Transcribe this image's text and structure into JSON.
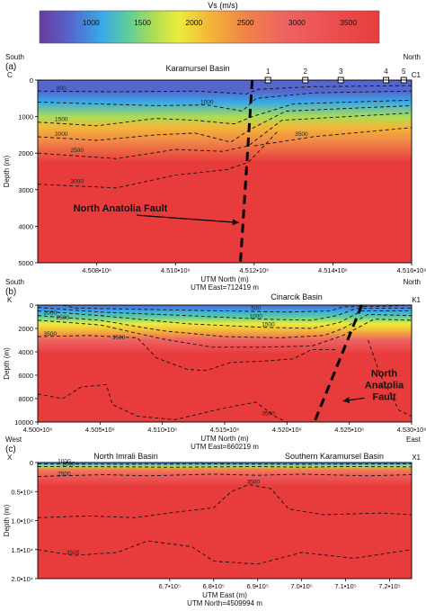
{
  "colorbar": {
    "label": "Vs (m/s)",
    "ticks": [
      "1000",
      "1500",
      "2000",
      "2500",
      "3000",
      "3500"
    ],
    "tick_values": [
      1000,
      1500,
      2000,
      2500,
      3000,
      3500
    ],
    "range": [
      500,
      3800
    ],
    "stops": [
      {
        "v": 500,
        "color": "#6a3a9e"
      },
      {
        "v": 800,
        "color": "#5566cc"
      },
      {
        "v": 1100,
        "color": "#38a8e8"
      },
      {
        "v": 1350,
        "color": "#5ccc9e"
      },
      {
        "v": 1600,
        "color": "#aadd55"
      },
      {
        "v": 1850,
        "color": "#ecec3c"
      },
      {
        "v": 2150,
        "color": "#f4b638"
      },
      {
        "v": 2500,
        "color": "#f08448"
      },
      {
        "v": 2900,
        "color": "#ee6262"
      },
      {
        "v": 3800,
        "color": "#e83c3c"
      }
    ]
  },
  "chart_data": [
    {
      "type": "heatmap",
      "panel_label": "(a)",
      "title": "Karamursel Basin",
      "left_end": "South",
      "left_point": "C",
      "right_end": "North",
      "right_point": "C1",
      "xlabel": "UTM North (m)",
      "xlabel2": "UTM East=712419 m",
      "ylabel": "Depth (m)",
      "xlim": [
        4506500,
        4516000
      ],
      "ylim": [
        0,
        5000
      ],
      "x_ticks": [
        {
          "value": 4508000,
          "label": "4.508•10⁶"
        },
        {
          "value": 4510000,
          "label": "4.510•10⁶"
        },
        {
          "value": 4512000,
          "label": "4.512•10⁶"
        },
        {
          "value": 4514000,
          "label": "4.514•10⁶"
        },
        {
          "value": 4516000,
          "label": "4.516•10⁶"
        }
      ],
      "y_ticks": [
        {
          "value": 0,
          "label": "0"
        },
        {
          "value": 1000,
          "label": "1000"
        },
        {
          "value": 2000,
          "label": "2000"
        },
        {
          "value": 3000,
          "label": "3000"
        },
        {
          "value": 4000,
          "label": "4000"
        },
        {
          "value": 5000,
          "label": "5000"
        }
      ],
      "stations": [
        {
          "label": "1",
          "x": 4512350
        },
        {
          "label": "2",
          "x": 4513300
        },
        {
          "label": "3",
          "x": 4514200
        },
        {
          "label": "4",
          "x": 4515350
        },
        {
          "label": "5",
          "x": 4515800
        }
      ],
      "contours": [
        {
          "label": "800",
          "label_x": 4507100,
          "points": [
            [
              4506500,
              300
            ],
            [
              4508500,
              320
            ],
            [
              4510500,
              300
            ],
            [
              4511800,
              380
            ],
            [
              4512100,
              250
            ],
            [
              4513500,
              180
            ],
            [
              4516000,
              150
            ]
          ]
        },
        {
          "label": "1000",
          "label_x": 4510800,
          "points": [
            [
              4506500,
              600
            ],
            [
              4508000,
              650
            ],
            [
              4509500,
              700
            ],
            [
              4510800,
              680
            ],
            [
              4511700,
              850
            ],
            [
              4512050,
              500
            ],
            [
              4513500,
              350
            ],
            [
              4516000,
              300
            ]
          ]
        },
        {
          "label": "1500",
          "label_x": 4507100,
          "points": [
            [
              4506500,
              1150
            ],
            [
              4508000,
              1250
            ],
            [
              4509500,
              1050
            ],
            [
              4510500,
              1100
            ],
            [
              4511500,
              1200
            ],
            [
              4511950,
              1000
            ],
            [
              4513000,
              650
            ],
            [
              4516000,
              550
            ]
          ]
        },
        {
          "label": "2000",
          "label_x": 4507100,
          "points": [
            [
              4506500,
              1550
            ],
            [
              4508000,
              1650
            ],
            [
              4509500,
              1500
            ],
            [
              4510500,
              1450
            ],
            [
              4511400,
              1700
            ],
            [
              4511900,
              1350
            ],
            [
              4512800,
              850
            ],
            [
              4516000,
              700
            ]
          ]
        },
        {
          "label": "2500",
          "label_x": 4507500,
          "points": [
            [
              4506500,
              2000
            ],
            [
              4508500,
              2150
            ],
            [
              4510000,
              1900
            ],
            [
              4511200,
              1950
            ],
            [
              4511850,
              1800
            ],
            [
              4512700,
              1100
            ],
            [
              4516000,
              900
            ]
          ]
        },
        {
          "label": "3000",
          "label_x": 4507500,
          "points": [
            [
              4506500,
              2850
            ],
            [
              4508500,
              2950
            ],
            [
              4510000,
              2600
            ],
            [
              4511300,
              2450
            ],
            [
              4511850,
              2250
            ],
            [
              4512600,
              1400
            ]
          ]
        },
        {
          "label": "3500",
          "label_x": 4513200,
          "points": [
            [
              4512000,
              1800
            ],
            [
              4513500,
              1550
            ],
            [
              4515500,
              1350
            ],
            [
              4516000,
              1300
            ]
          ]
        }
      ],
      "fault": {
        "label": "North Anatolia Fault",
        "points": [
          [
            4511950,
            0
          ],
          [
            4511650,
            5000
          ]
        ],
        "label_x": 4508600,
        "label_y": 3500,
        "arrow_to": [
          4511750,
          4000
        ]
      }
    },
    {
      "type": "heatmap",
      "panel_label": "(b)",
      "title": "Cinarcik Basin",
      "left_end": "South",
      "left_point": "K",
      "right_end": "North",
      "right_point": "K1",
      "xlabel": "UTM North (m)",
      "xlabel2": "UTM East=660219 m",
      "ylabel": "Depth (m)",
      "xlim": [
        4500000,
        4530000
      ],
      "ylim": [
        0,
        10000
      ],
      "x_ticks": [
        {
          "value": 4500000,
          "label": "4.500•10⁶"
        },
        {
          "value": 4505000,
          "label": "4.505•10⁶"
        },
        {
          "value": 4510000,
          "label": "4.510•10⁶"
        },
        {
          "value": 4515000,
          "label": "4.515•10⁶"
        },
        {
          "value": 4520000,
          "label": "4.520•10⁶"
        },
        {
          "value": 4525000,
          "label": "4.525•10⁶"
        },
        {
          "value": 4530000,
          "label": "4.530•10⁶"
        }
      ],
      "y_ticks": [
        {
          "value": 0,
          "label": "0"
        },
        {
          "value": 2000,
          "label": "2000"
        },
        {
          "value": 4000,
          "label": "4000"
        },
        {
          "value": 6000,
          "label": "6000"
        },
        {
          "value": 8000,
          "label": "8000"
        },
        {
          "value": 10000,
          "label": "10000"
        }
      ],
      "stations": [],
      "contours": [
        {
          "label": "500",
          "label_x": 4517500,
          "points": [
            [
              4502000,
              0
            ],
            [
              4503000,
              250
            ],
            [
              4510000,
              400
            ],
            [
              4515000,
              500
            ],
            [
              4520000,
              600
            ],
            [
              4523500,
              500
            ],
            [
              4524500,
              150
            ],
            [
              4528000,
              100
            ],
            [
              4530000,
              0
            ]
          ]
        },
        {
          "label": "1000",
          "label_x": 4517500,
          "points": [
            [
              4500000,
              200
            ],
            [
              4505000,
              600
            ],
            [
              4512000,
              900
            ],
            [
              4518000,
              1200
            ],
            [
              4522000,
              1300
            ],
            [
              4524000,
              900
            ],
            [
              4525500,
              300
            ],
            [
              4530000,
              250
            ]
          ]
        },
        {
          "label": "1500",
          "label_x": 4518500,
          "points": [
            [
              4500000,
              500
            ],
            [
              4505000,
              900
            ],
            [
              4512000,
              1600
            ],
            [
              4518000,
              1900
            ],
            [
              4522000,
              2000
            ],
            [
              4524200,
              1500
            ],
            [
              4526000,
              500
            ],
            [
              4530000,
              500
            ]
          ]
        },
        {
          "label": "2000",
          "label_x": 4501000,
          "points": [
            [
              4500000,
              900
            ],
            [
              4505000,
              1300
            ],
            [
              4510000,
              2200
            ],
            [
              4515000,
              2700
            ],
            [
              4519500,
              2800
            ],
            [
              4523000,
              2600
            ],
            [
              4524500,
              2000
            ],
            [
              4526500,
              800
            ],
            [
              4530000,
              900
            ]
          ]
        },
        {
          "label": "2500",
          "label_x": 4502000,
          "points": [
            [
              4500000,
              1300
            ],
            [
              4505000,
              1700
            ],
            [
              4510000,
              2900
            ],
            [
              4514000,
              3600
            ],
            [
              4518000,
              3600
            ],
            [
              4522000,
              3500
            ],
            [
              4524500,
              2600
            ],
            [
              4527000,
              1200
            ],
            [
              4530000,
              1300
            ]
          ]
        },
        {
          "label": "3500",
          "label_x": 4501000,
          "points": [
            [
              4500000,
              2700
            ],
            [
              4504000,
              2600
            ],
            [
              4508000,
              2800
            ],
            [
              4509500,
              4500
            ],
            [
              4512000,
              5500
            ],
            [
              4513500,
              5600
            ],
            [
              4515500,
              4900
            ],
            [
              4518000,
              4800
            ],
            [
              4520500,
              4600
            ],
            [
              4522000,
              3800
            ],
            [
              4524000,
              3800
            ]
          ]
        },
        {
          "label": "3500",
          "label_x": 4518500,
          "points": [
            [
              4500000,
              7600
            ],
            [
              4502000,
              8000
            ],
            [
              4503500,
              7000
            ],
            [
              4505500,
              6800
            ],
            [
              4506000,
              8500
            ],
            [
              4508000,
              9500
            ],
            [
              4511000,
              9800
            ],
            [
              4515000,
              8800
            ],
            [
              4517500,
              8300
            ],
            [
              4519000,
              9500
            ],
            [
              4520000,
              10000
            ]
          ]
        },
        {
          "label": "3500",
          "label_x": 4506500,
          "points": [
            [
              4526500,
              3000
            ],
            [
              4527500,
              6000
            ],
            [
              4529000,
              9000
            ],
            [
              4530000,
              9500
            ]
          ]
        }
      ],
      "fault": {
        "label": "North Anatolia Fault",
        "points": [
          [
            4526000,
            0
          ],
          [
            4522200,
            10000
          ]
        ],
        "label_x": 4527800,
        "label_y": 6100,
        "arrow_to": [
          4524200,
          8200
        ]
      }
    },
    {
      "type": "heatmap",
      "panel_label": "(c)",
      "title": "North Imrali Basin",
      "title2": "Southern Karamursel Basin",
      "left_end": "West",
      "left_point": "X",
      "right_end": "East",
      "right_point": "X1",
      "xlabel": "UTM East (m)",
      "xlabel2": "UTM North=4509994 m",
      "ylabel": "Depth (m)",
      "xlim": [
        640000,
        725000
      ],
      "ylim": [
        0,
        20000
      ],
      "x_ticks": [
        {
          "value": 670000,
          "label": "6.7•10⁵"
        },
        {
          "value": 680000,
          "label": "6.8•10⁵"
        },
        {
          "value": 690000,
          "label": "6.9•10⁵"
        },
        {
          "value": 700000,
          "label": "7.0•10⁵"
        },
        {
          "value": 710000,
          "label": "7.1•10⁵"
        },
        {
          "value": 720000,
          "label": "7.2•10⁵"
        }
      ],
      "y_ticks": [
        {
          "value": 0,
          "label": "0"
        },
        {
          "value": 5000,
          "label": "0.5•10⁴"
        },
        {
          "value": 10000,
          "label": "1.0•10⁴"
        },
        {
          "value": 15000,
          "label": "1.5•10⁴"
        },
        {
          "value": 20000,
          "label": "2.0•10⁴"
        }
      ],
      "stations": [],
      "contours": [
        {
          "label": "1000",
          "label_x": 646000,
          "points": [
            [
              640000,
              250
            ],
            [
              660000,
              300
            ],
            [
              680000,
              250
            ],
            [
              700000,
              300
            ],
            [
              720000,
              250
            ],
            [
              725000,
              250
            ]
          ]
        },
        {
          "label": "1500",
          "label_x": 647000,
          "points": [
            [
              640000,
              700
            ],
            [
              660000,
              750
            ],
            [
              670000,
              800
            ],
            [
              690000,
              700
            ],
            [
              700000,
              800
            ],
            [
              710000,
              700
            ],
            [
              725000,
              750
            ]
          ]
        },
        {
          "label": "2500",
          "label_x": 646000,
          "points": [
            [
              640000,
              2400
            ],
            [
              655000,
              2100
            ],
            [
              665000,
              2300
            ],
            [
              680000,
              2000
            ],
            [
              690000,
              2200
            ],
            [
              700000,
              2000
            ],
            [
              715000,
              2300
            ],
            [
              725000,
              2100
            ]
          ]
        },
        {
          "label": "3500",
          "label_x": 689000,
          "points": [
            [
              640000,
              9500
            ],
            [
              652000,
              9200
            ],
            [
              662000,
              9500
            ],
            [
              672000,
              8500
            ],
            [
              680000,
              7800
            ],
            [
              684000,
              5000
            ],
            [
              688000,
              3800
            ],
            [
              693000,
              4500
            ],
            [
              697000,
              8000
            ],
            [
              705000,
              9000
            ],
            [
              718000,
              8700
            ],
            [
              725000,
              9000
            ]
          ]
        },
        {
          "label": "3500",
          "label_x": 648000,
          "points": [
            [
              640000,
              15000
            ],
            [
              648000,
              16000
            ],
            [
              658000,
              15500
            ],
            [
              665000,
              13500
            ],
            [
              675000,
              14500
            ],
            [
              680000,
              17000
            ],
            [
              690000,
              17500
            ],
            [
              700000,
              15500
            ],
            [
              712000,
              16500
            ],
            [
              725000,
              15000
            ]
          ]
        }
      ],
      "fault": null
    }
  ]
}
